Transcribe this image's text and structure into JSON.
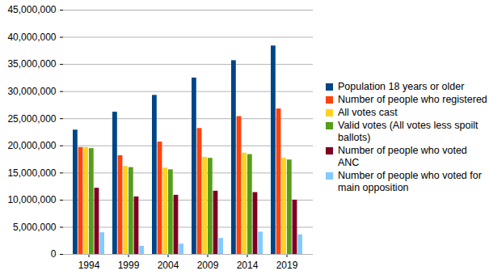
{
  "chart_data": {
    "type": "bar",
    "categories": [
      "1994",
      "1999",
      "2004",
      "2009",
      "2014",
      "2019"
    ],
    "series": [
      {
        "name": "Population 18 years or older",
        "color": "#004586",
        "values": [
          22900000,
          26200000,
          29300000,
          32500000,
          35700000,
          38400000
        ]
      },
      {
        "name": "Number of people who registered",
        "color": "#ff420e",
        "values": [
          19700000,
          18200000,
          20700000,
          23200000,
          25400000,
          26800000
        ]
      },
      {
        "name": "All votes cast",
        "color": "#ffd320",
        "values": [
          19700000,
          16200000,
          15900000,
          17900000,
          18650000,
          17700000
        ]
      },
      {
        "name": "Valid votes (All votes less spoilt ballots)",
        "color": "#579d1c",
        "values": [
          19500000,
          16000000,
          15600000,
          17700000,
          18400000,
          17400000
        ]
      },
      {
        "name": "Number of people who voted ANC",
        "color": "#7e0021",
        "values": [
          12200000,
          10600000,
          10900000,
          11650000,
          11400000,
          10000000
        ]
      },
      {
        "name": "Number of people who voted for main opposition",
        "color": "#83caff",
        "values": [
          4000000,
          1500000,
          1900000,
          2950000,
          4100000,
          3600000
        ]
      }
    ],
    "ylim": [
      0,
      45000000
    ],
    "yticks": [
      0,
      {
        "value": 5000000,
        "label": "5,000,000"
      },
      {
        "value": 10000000,
        "label": "10,000,000"
      },
      {
        "value": 15000000,
        "label": "15,000,000"
      },
      {
        "value": 20000000,
        "label": "20,000,000"
      },
      {
        "value": 25000000,
        "label": "25,000,000"
      },
      {
        "value": 30000000,
        "label": "30,000,000"
      },
      {
        "value": 35000000,
        "label": "35,000,000"
      },
      {
        "value": 40000000,
        "label": "40,000,000"
      },
      {
        "value": 45000000,
        "label": "45,000,000"
      }
    ],
    "grid": true,
    "legend": "right"
  }
}
